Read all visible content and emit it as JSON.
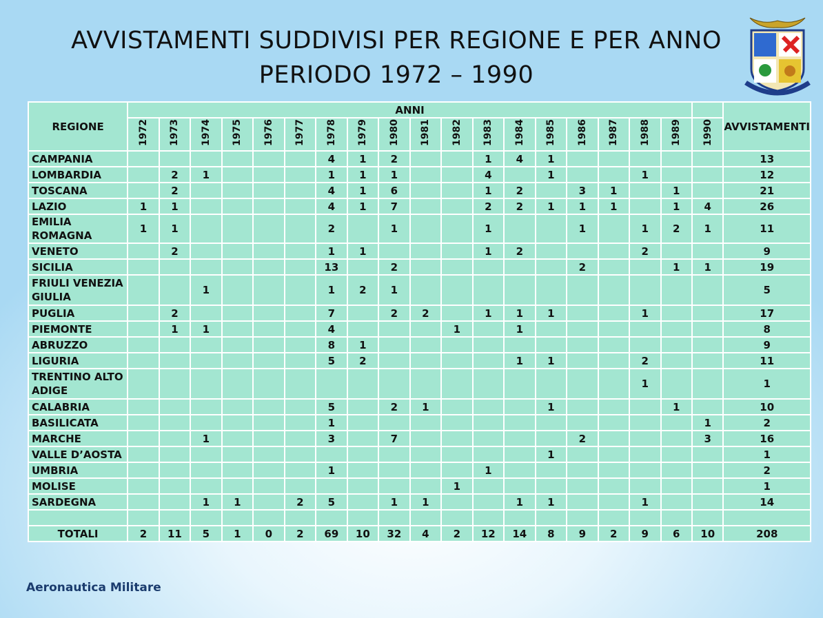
{
  "title": [
    "AVVISTAMENTI SUDDIVISI PER REGIONE E PER ANNO",
    "PERIODO 1972 – 1990"
  ],
  "table": {
    "region_header": "REGIONE",
    "years_header": "ANNI",
    "total_header": "AVVISTAMENTI",
    "years": [
      1972,
      1973,
      1974,
      1975,
      1976,
      1977,
      1978,
      1979,
      1980,
      1981,
      1982,
      1983,
      1984,
      1985,
      1986,
      1987,
      1988,
      1989,
      1990
    ],
    "rows": [
      {
        "region": "CAMPANIA",
        "values": [
          null,
          null,
          null,
          null,
          null,
          null,
          4,
          1,
          2,
          null,
          null,
          1,
          4,
          1,
          null,
          null,
          null,
          null,
          null
        ],
        "total": 13
      },
      {
        "region": "LOMBARDIA",
        "values": [
          null,
          2,
          1,
          null,
          null,
          null,
          1,
          1,
          1,
          null,
          null,
          4,
          null,
          1,
          null,
          null,
          1,
          null,
          null
        ],
        "total": 12
      },
      {
        "region": "TOSCANA",
        "values": [
          null,
          2,
          null,
          null,
          null,
          null,
          4,
          1,
          6,
          null,
          null,
          1,
          2,
          null,
          3,
          1,
          null,
          1,
          null
        ],
        "total": 21
      },
      {
        "region": "LAZIO",
        "values": [
          1,
          1,
          null,
          null,
          null,
          null,
          4,
          1,
          7,
          null,
          null,
          2,
          2,
          1,
          1,
          1,
          null,
          1,
          4
        ],
        "total": 26
      },
      {
        "region": "EMILIA ROMAGNA",
        "values": [
          1,
          1,
          null,
          null,
          null,
          null,
          2,
          null,
          1,
          null,
          null,
          1,
          null,
          null,
          1,
          null,
          1,
          2,
          1
        ],
        "total": 11
      },
      {
        "region": "VENETO",
        "values": [
          null,
          2,
          null,
          null,
          null,
          null,
          1,
          1,
          null,
          null,
          null,
          1,
          2,
          null,
          null,
          null,
          2,
          null,
          null
        ],
        "total": 9
      },
      {
        "region": "SICILIA",
        "values": [
          null,
          null,
          null,
          null,
          null,
          null,
          13,
          null,
          2,
          null,
          null,
          null,
          null,
          null,
          2,
          null,
          null,
          1,
          1
        ],
        "total": 19
      },
      {
        "region": "FRIULI VENEZIA GIULIA",
        "values": [
          null,
          null,
          1,
          null,
          null,
          null,
          1,
          2,
          1,
          null,
          null,
          null,
          null,
          null,
          null,
          null,
          null,
          null,
          null
        ],
        "total": 5
      },
      {
        "region": "PUGLIA",
        "values": [
          null,
          2,
          null,
          null,
          null,
          null,
          7,
          null,
          2,
          2,
          null,
          1,
          1,
          1,
          null,
          null,
          1,
          null,
          null
        ],
        "total": 17
      },
      {
        "region": "PIEMONTE",
        "values": [
          null,
          1,
          1,
          null,
          null,
          null,
          4,
          null,
          null,
          null,
          1,
          null,
          1,
          null,
          null,
          null,
          null,
          null,
          null
        ],
        "total": 8
      },
      {
        "region": "ABRUZZO",
        "values": [
          null,
          null,
          null,
          null,
          null,
          null,
          8,
          1,
          null,
          null,
          null,
          null,
          null,
          null,
          null,
          null,
          null,
          null,
          null
        ],
        "total": 9
      },
      {
        "region": "LIGURIA",
        "values": [
          null,
          null,
          null,
          null,
          null,
          null,
          5,
          2,
          null,
          null,
          null,
          null,
          1,
          1,
          null,
          null,
          2,
          null,
          null
        ],
        "total": 11
      },
      {
        "region": "TRENTINO ALTO ADIGE",
        "values": [
          null,
          null,
          null,
          null,
          null,
          null,
          null,
          null,
          null,
          null,
          null,
          null,
          null,
          null,
          null,
          null,
          1,
          null,
          null
        ],
        "total": 1
      },
      {
        "region": "CALABRIA",
        "values": [
          null,
          null,
          null,
          null,
          null,
          null,
          5,
          null,
          2,
          1,
          null,
          null,
          null,
          1,
          null,
          null,
          null,
          1,
          null
        ],
        "total": 10
      },
      {
        "region": "BASILICATA",
        "values": [
          null,
          null,
          null,
          null,
          null,
          null,
          1,
          null,
          null,
          null,
          null,
          null,
          null,
          null,
          null,
          null,
          null,
          null,
          1
        ],
        "total": 2
      },
      {
        "region": "MARCHE",
        "values": [
          null,
          null,
          1,
          null,
          null,
          null,
          3,
          null,
          7,
          null,
          null,
          null,
          null,
          null,
          2,
          null,
          null,
          null,
          3
        ],
        "total": 16
      },
      {
        "region": "VALLE D’AOSTA",
        "values": [
          null,
          null,
          null,
          null,
          null,
          null,
          null,
          null,
          null,
          null,
          null,
          null,
          null,
          1,
          null,
          null,
          null,
          null,
          null
        ],
        "total": 1
      },
      {
        "region": "UMBRIA",
        "values": [
          null,
          null,
          null,
          null,
          null,
          null,
          1,
          null,
          null,
          null,
          null,
          1,
          null,
          null,
          null,
          null,
          null,
          null,
          null
        ],
        "total": 2
      },
      {
        "region": "MOLISE",
        "values": [
          null,
          null,
          null,
          null,
          null,
          null,
          null,
          null,
          null,
          null,
          1,
          null,
          null,
          null,
          null,
          null,
          null,
          null,
          null
        ],
        "total": 1
      },
      {
        "region": "SARDEGNA",
        "values": [
          null,
          null,
          1,
          1,
          null,
          2,
          5,
          null,
          1,
          1,
          null,
          null,
          1,
          1,
          null,
          null,
          1,
          null,
          null
        ],
        "total": 14
      }
    ],
    "totals": {
      "label": "TOTALI",
      "values": [
        2,
        11,
        5,
        1,
        0,
        2,
        69,
        10,
        32,
        4,
        2,
        12,
        14,
        8,
        9,
        2,
        9,
        6,
        10
      ],
      "total": 208
    }
  },
  "footer": "Aeronautica Militare"
}
